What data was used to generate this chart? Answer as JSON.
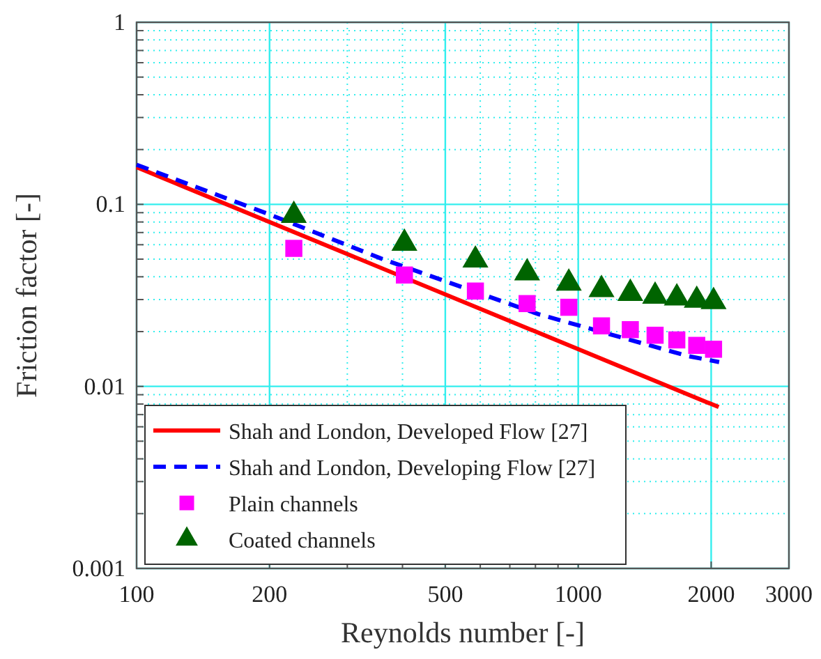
{
  "chart_data": {
    "type": "line",
    "xlabel": "Reynolds number [-]",
    "ylabel": "Friction factor [-]",
    "log": "xy",
    "grid": true,
    "legend": "bottom left",
    "xlim": [
      100,
      3000
    ],
    "ylim": [
      0.001,
      1
    ],
    "xticks": [
      100,
      200,
      {
        "value": 300,
        "label": null
      },
      {
        "value": 400,
        "label": null
      },
      500,
      {
        "value": 600,
        "label": null
      },
      {
        "value": 700,
        "label": null
      },
      {
        "value": 800,
        "label": null
      },
      {
        "value": 900,
        "label": null
      },
      1000,
      2000,
      3000
    ],
    "yticks": [
      0.001,
      {
        "value": 0.002,
        "label": null
      },
      {
        "value": 0.003,
        "label": null
      },
      {
        "value": 0.004,
        "label": null
      },
      {
        "value": 0.005,
        "label": null
      },
      {
        "value": 0.006,
        "label": null
      },
      {
        "value": 0.007,
        "label": null
      },
      {
        "value": 0.008,
        "label": null
      },
      {
        "value": 0.009,
        "label": null
      },
      0.01,
      {
        "value": 0.02,
        "label": null
      },
      {
        "value": 0.03,
        "label": null
      },
      {
        "value": 0.04,
        "label": null
      },
      {
        "value": 0.05,
        "label": null
      },
      {
        "value": 0.06,
        "label": null
      },
      {
        "value": 0.07,
        "label": null
      },
      {
        "value": 0.08,
        "label": null
      },
      {
        "value": 0.09,
        "label": null
      },
      0.1,
      {
        "value": 0.2,
        "label": null
      },
      {
        "value": 0.3,
        "label": null
      },
      {
        "value": 0.4,
        "label": null
      },
      {
        "value": 0.5,
        "label": null
      },
      {
        "value": 0.6,
        "label": null
      },
      {
        "value": 0.7,
        "label": null
      },
      {
        "value": 0.8,
        "label": null
      },
      {
        "value": 0.9,
        "label": null
      },
      1
    ],
    "series": [
      {
        "name": "Shah and London, Developed Flow [27]",
        "color": "#ff0000",
        "line_style": "solid",
        "marker": "none",
        "x": [
          100,
          2080
        ],
        "values": [
          0.16,
          0.0077
        ]
      },
      {
        "name": "Shah and London, Developing Flow [27]",
        "color": "#0000ff",
        "line_style": "dashed",
        "marker": "none",
        "x": [
          100,
          200,
          357,
          814,
          1767,
          2085
        ],
        "values": [
          0.165,
          0.088,
          0.0505,
          0.0249,
          0.0147,
          0.0136
        ]
      },
      {
        "name": "Plain channels",
        "type": "scatter",
        "color": "#ff00ff",
        "marker": "square",
        "x": [
          227,
          404,
          585,
          766,
          952,
          1129,
          1312,
          1493,
          1672,
          1855,
          2025
        ],
        "values": [
          0.0573,
          0.0409,
          0.0334,
          0.0285,
          0.0272,
          0.0215,
          0.0205,
          0.0191,
          0.018,
          0.0168,
          0.016
        ]
      },
      {
        "name": "Coated channels",
        "type": "scatter",
        "color": "#006400",
        "marker": "triangle",
        "x": [
          227,
          404,
          585,
          766,
          952,
          1129,
          1312,
          1493,
          1672,
          1855,
          2025
        ],
        "values": [
          0.0869,
          0.0611,
          0.0494,
          0.042,
          0.0369,
          0.034,
          0.0324,
          0.0313,
          0.0306,
          0.0297,
          0.0292
        ]
      }
    ]
  }
}
